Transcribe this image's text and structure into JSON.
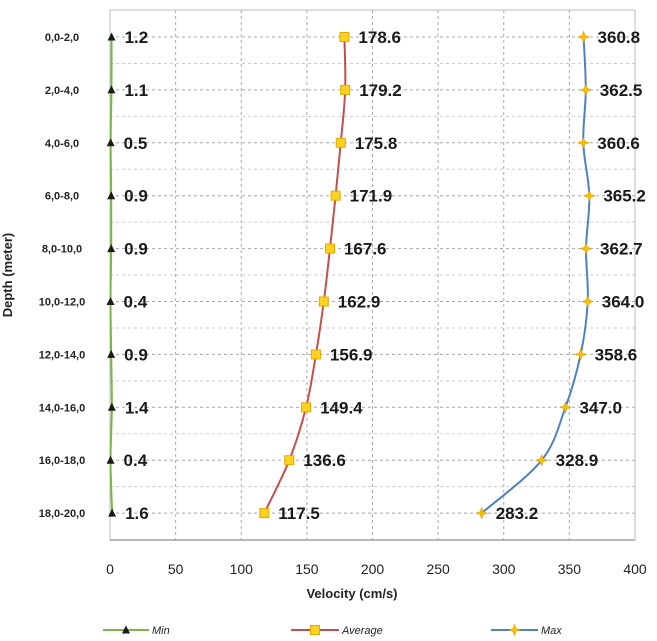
{
  "chart_data": {
    "type": "line",
    "xlabel": "Velocity (cm/s)",
    "ylabel": "Depth (meter)",
    "xlim": [
      0,
      400
    ],
    "xticks": [
      "0",
      "50",
      "100",
      "150",
      "200",
      "250",
      "300",
      "350",
      "400"
    ],
    "categories": [
      "0,0-2,0",
      "2,0-4,0",
      "4,0-6,0",
      "6,0-8,0",
      "8,0-10,0",
      "10,0-12,0",
      "12,0-14,0",
      "14,0-16,0",
      "16,0-18,0",
      "18,0-20,0"
    ],
    "grid": true,
    "legend_position": "bottom",
    "series": [
      {
        "name": "Min",
        "color": "#7ab648",
        "marker": "triangle",
        "values": [
          1.2,
          1.1,
          0.5,
          0.9,
          0.9,
          0.4,
          0.9,
          1.4,
          0.4,
          1.6
        ],
        "labels": [
          "1.2",
          "1.1",
          "0.5",
          "0.9",
          "0.9",
          "0.4",
          "0.9",
          "1.4",
          "0.4",
          "1.6"
        ]
      },
      {
        "name": "Average",
        "color": "#c0504d",
        "marker": "square",
        "values": [
          178.6,
          179.2,
          175.8,
          171.9,
          167.6,
          162.9,
          156.9,
          149.4,
          136.6,
          117.5
        ],
        "labels": [
          "178.6",
          "179.2",
          "175.8",
          "171.9",
          "167.6",
          "162.9",
          "156.9",
          "149.4",
          "136.6",
          "117.5"
        ]
      },
      {
        "name": "Max",
        "color": "#4f81bd",
        "marker": "star",
        "values": [
          360.8,
          362.5,
          360.6,
          365.2,
          362.7,
          364.0,
          358.6,
          347.0,
          328.9,
          283.2
        ],
        "labels": [
          "360.8",
          "362.5",
          "360.6",
          "365.2",
          "362.7",
          "364.0",
          "358.6",
          "347.0",
          "328.9",
          "283.2"
        ]
      }
    ]
  }
}
